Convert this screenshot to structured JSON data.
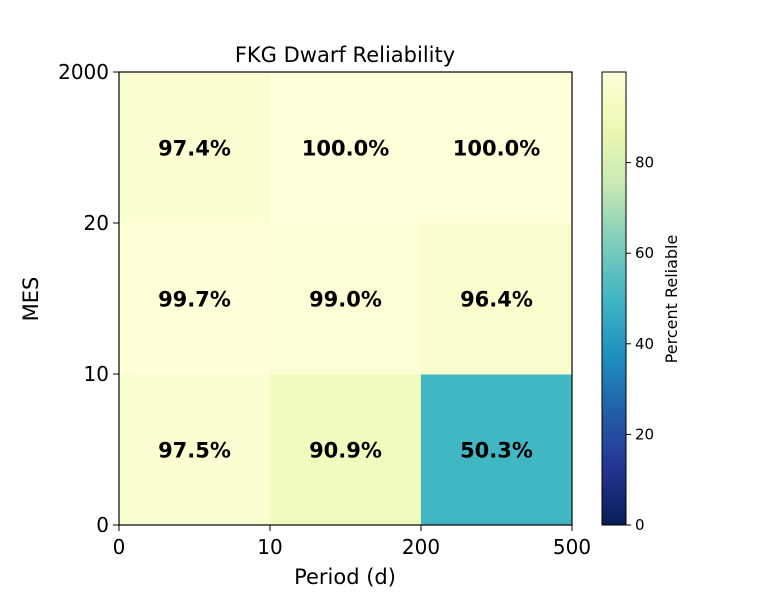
{
  "chart_data": {
    "type": "heatmap",
    "title": "FKG Dwarf Reliability",
    "xlabel": "Period (d)",
    "ylabel": "MES",
    "x_tick_labels": [
      "0",
      "10",
      "200",
      "500"
    ],
    "y_tick_labels": [
      "0",
      "10",
      "20",
      "2000"
    ],
    "cells": [
      [
        97.5,
        90.9,
        50.3
      ],
      [
        99.7,
        99.0,
        96.4
      ],
      [
        97.4,
        100.0,
        100.0
      ]
    ],
    "cell_labels": [
      [
        "97.5%",
        "90.9%",
        "50.3%"
      ],
      [
        "99.7%",
        "99.0%",
        "96.4%"
      ],
      [
        "97.4%",
        "100.0%",
        "100.0%"
      ]
    ],
    "colorscale": "YlGnBu",
    "colorbar": {
      "label": "Percent Reliable",
      "min": 0,
      "max": 100,
      "ticks": [
        0,
        20,
        40,
        60,
        80
      ],
      "tick_labels": [
        "0",
        "20",
        "40",
        "60",
        "80"
      ]
    }
  }
}
